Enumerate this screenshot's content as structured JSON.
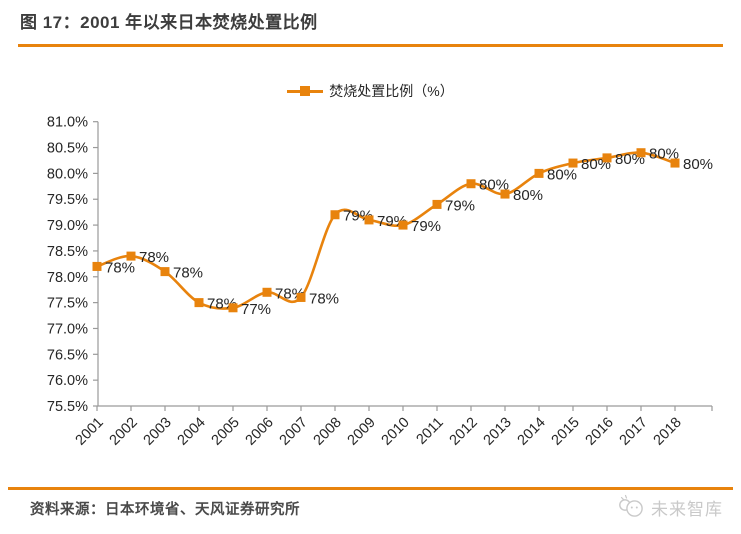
{
  "figure": {
    "title": "图 17：2001 年以来日本焚烧处置比例",
    "source": "资料来源：日本环境省、天风证券研究所",
    "logo_text": "未来智库"
  },
  "colors": {
    "accent": "#E8830D",
    "text": "#262626",
    "axis": "#9a9a9a",
    "logo": "#c9c9c9"
  },
  "chart_data": {
    "type": "line",
    "title": "图 17：2001 年以来日本焚烧处置比例",
    "legend": [
      "焚烧处置比例（%）"
    ],
    "legend_position": "top",
    "categories": [
      "2001",
      "2002",
      "2003",
      "2004",
      "2005",
      "2006",
      "2007",
      "2008",
      "2009",
      "2010",
      "2011",
      "2012",
      "2013",
      "2014",
      "2015",
      "2016",
      "2017",
      "2018"
    ],
    "series": [
      {
        "name": "焚烧处置比例（%）",
        "values": [
          78.2,
          78.4,
          78.1,
          77.5,
          77.4,
          77.7,
          77.6,
          79.2,
          79.1,
          79.0,
          79.4,
          79.8,
          79.6,
          80.0,
          80.2,
          80.3,
          80.4,
          80.2
        ]
      }
    ],
    "point_labels": [
      "78%",
      "78%",
      "78%",
      "78%",
      "77%",
      "78%",
      "78%",
      "79%",
      "79%",
      "79%",
      "79%",
      "80%",
      "80%",
      "80%",
      "80%",
      "80%",
      "80%",
      "80%"
    ],
    "xlabel": "",
    "ylabel": "",
    "ylim": [
      75.5,
      81.0
    ],
    "ytick_step": 0.5,
    "ytick_labels": [
      "81.0%",
      "80.5%",
      "80.0%",
      "79.5%",
      "79.0%",
      "78.5%",
      "78.0%",
      "77.5%",
      "77.0%",
      "76.5%",
      "76.0%",
      "75.5%"
    ],
    "grid": false,
    "marker": "square",
    "smooth": true
  }
}
